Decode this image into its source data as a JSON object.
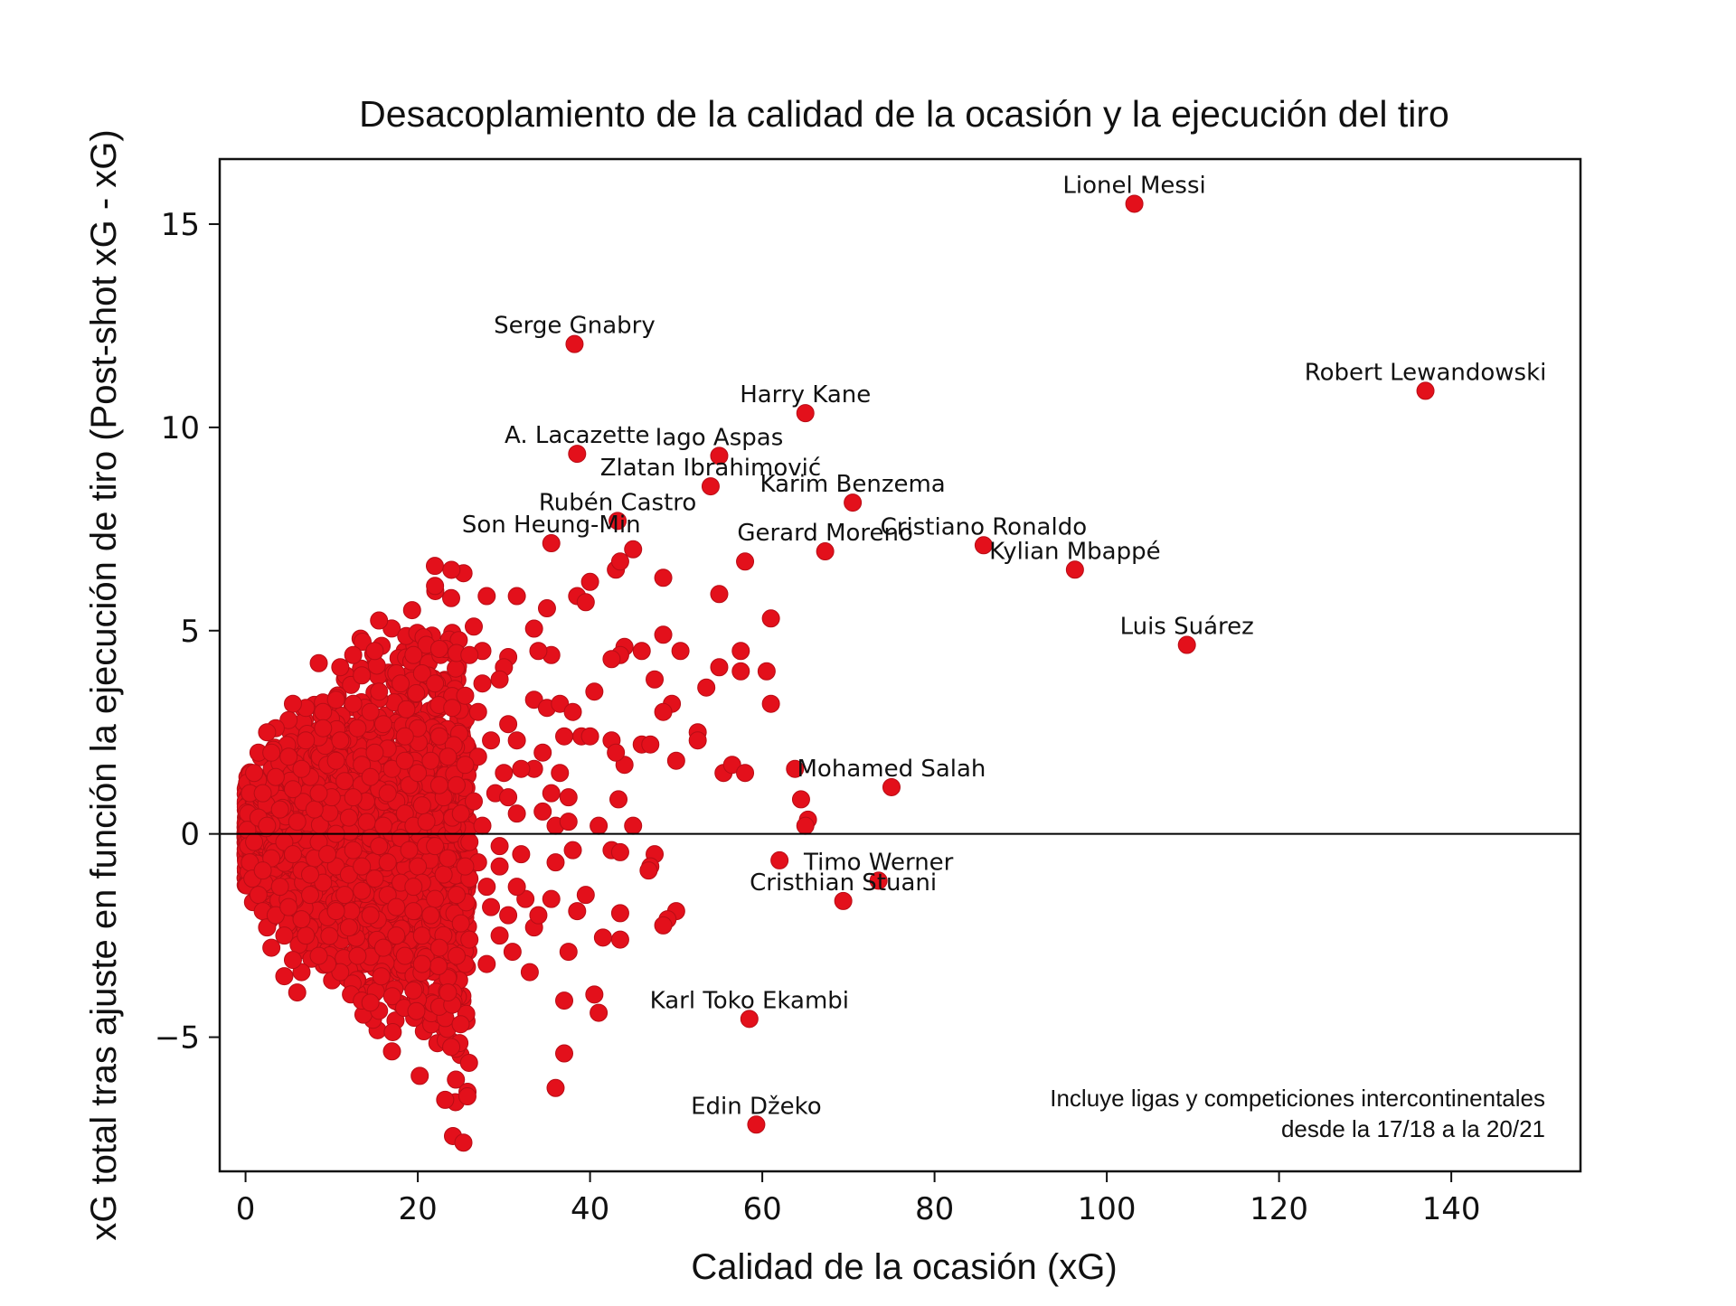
{
  "chart_data": {
    "type": "scatter",
    "title": "Desacoplamiento de la calidad de la ocasión y la ejecución del tiro",
    "xlabel": "Calidad de la ocasión (xG)",
    "ylabel": "xG total tras ajuste en función la ejecución de tiro (Post-shot xG - xG)",
    "xlim": [
      -3,
      155
    ],
    "ylim": [
      -8.3,
      16.6
    ],
    "xticks": [
      0,
      20,
      40,
      60,
      80,
      100,
      120,
      140
    ],
    "yticks": [
      -5,
      0,
      5,
      10,
      15
    ],
    "ytick_labels": [
      "−5",
      "0",
      "5",
      "10",
      "15"
    ],
    "grid": false,
    "reference_line_y": 0,
    "point_color": "#e3101b",
    "point_edge_color": "#b80d16",
    "note": [
      "Incluye ligas y competiciones intercontinentales",
      "desde la 17/18 a la 20/21"
    ],
    "labeled_points": [
      {
        "label": "Lionel Messi",
        "x": 103.2,
        "y": 15.5
      },
      {
        "label": "Serge Gnabry",
        "x": 38.2,
        "y": 12.05
      },
      {
        "label": "Robert Lewandowski",
        "x": 137.0,
        "y": 10.9
      },
      {
        "label": "Harry Kane",
        "x": 65.0,
        "y": 10.35
      },
      {
        "label": "A. Lacazette",
        "x": 38.5,
        "y": 9.35
      },
      {
        "label": "Iago Aspas",
        "x": 55.0,
        "y": 9.3
      },
      {
        "label": "Zlatan Ibrahimović",
        "x": 54.0,
        "y": 8.55
      },
      {
        "label": "Karim Benzema",
        "x": 70.5,
        "y": 8.15
      },
      {
        "label": "Rubén Castro",
        "x": 43.2,
        "y": 7.7
      },
      {
        "label": "Son Heung-Min",
        "x": 35.5,
        "y": 7.15
      },
      {
        "label": "Gerard Moreno",
        "x": 67.3,
        "y": 6.95
      },
      {
        "label": "Cristiano Ronaldo",
        "x": 85.7,
        "y": 7.1
      },
      {
        "label": "Kylian Mbappé",
        "x": 96.3,
        "y": 6.5
      },
      {
        "label": "Luis Suárez",
        "x": 109.3,
        "y": 4.65
      },
      {
        "label": "Mohamed Salah",
        "x": 75.0,
        "y": 1.15
      },
      {
        "label": "Timo Werner",
        "x": 73.5,
        "y": -1.15
      },
      {
        "label": "Cristhian Stuani",
        "x": 69.4,
        "y": -1.65
      },
      {
        "label": "Karl Toko Ekambi",
        "x": 58.5,
        "y": -4.55
      },
      {
        "label": "Edin Džeko",
        "x": 59.3,
        "y": -7.15
      }
    ],
    "other_points": [
      [
        22.0,
        6.1
      ],
      [
        28.0,
        5.85
      ],
      [
        31.5,
        5.85
      ],
      [
        35.0,
        5.55
      ],
      [
        38.5,
        5.85
      ],
      [
        39.5,
        5.7
      ],
      [
        40.0,
        6.2
      ],
      [
        43.0,
        6.5
      ],
      [
        43.5,
        6.7
      ],
      [
        45.0,
        7.0
      ],
      [
        48.5,
        6.3
      ],
      [
        55.0,
        5.9
      ],
      [
        58.0,
        6.7
      ],
      [
        61.0,
        5.3
      ],
      [
        57.5,
        4.5
      ],
      [
        60.5,
        4.0
      ],
      [
        57.5,
        4.0
      ],
      [
        55.0,
        4.1
      ],
      [
        53.5,
        3.6
      ],
      [
        50.5,
        4.5
      ],
      [
        48.5,
        4.9
      ],
      [
        46.0,
        4.5
      ],
      [
        44.0,
        4.6
      ],
      [
        43.5,
        4.4
      ],
      [
        42.5,
        4.3
      ],
      [
        47.5,
        3.8
      ],
      [
        40.5,
        3.5
      ],
      [
        49.5,
        3.2
      ],
      [
        48.5,
        3.0
      ],
      [
        52.5,
        2.5
      ],
      [
        52.5,
        2.3
      ],
      [
        61.0,
        3.2
      ],
      [
        46.0,
        2.2
      ],
      [
        47.0,
        2.2
      ],
      [
        44.0,
        1.7
      ],
      [
        42.5,
        2.3
      ],
      [
        43.0,
        2.0
      ],
      [
        39.0,
        2.4
      ],
      [
        40.0,
        2.4
      ],
      [
        50.0,
        1.8
      ],
      [
        55.5,
        1.5
      ],
      [
        56.5,
        1.7
      ],
      [
        58.0,
        1.5
      ],
      [
        63.8,
        1.6
      ],
      [
        64.5,
        0.85
      ],
      [
        65.3,
        0.35
      ],
      [
        65.0,
        0.2
      ],
      [
        43.3,
        0.85
      ],
      [
        45.0,
        0.2
      ],
      [
        41.0,
        0.2
      ],
      [
        42.5,
        -0.4
      ],
      [
        43.5,
        -0.45
      ],
      [
        47.5,
        -0.5
      ],
      [
        47.0,
        -0.8
      ],
      [
        46.8,
        -0.9
      ],
      [
        62.0,
        -0.65
      ],
      [
        50.0,
        -1.9
      ],
      [
        49.0,
        -2.1
      ],
      [
        48.5,
        -2.25
      ],
      [
        43.5,
        -1.95
      ],
      [
        41.5,
        -2.55
      ],
      [
        43.5,
        -2.6
      ],
      [
        39.5,
        -1.5
      ],
      [
        38.5,
        -1.9
      ],
      [
        37.5,
        -2.9
      ],
      [
        37.0,
        -4.1
      ],
      [
        40.5,
        -3.95
      ],
      [
        41.0,
        -4.4
      ],
      [
        37.0,
        -5.4
      ],
      [
        36.0,
        -6.25
      ],
      [
        17.0,
        -5.35
      ],
      [
        15.5,
        -4.35
      ],
      [
        13.5,
        -4.1
      ],
      [
        14.5,
        -4.15
      ],
      [
        22.5,
        -4.25
      ],
      [
        24.0,
        -4.2
      ],
      [
        23.5,
        -3.9
      ],
      [
        19.5,
        -3.85
      ],
      [
        25.5,
        -3.2
      ],
      [
        28.0,
        -3.2
      ],
      [
        33.0,
        -3.4
      ],
      [
        31.0,
        -2.9
      ],
      [
        29.5,
        -2.5
      ],
      [
        33.5,
        -2.3
      ],
      [
        30.5,
        -2.0
      ],
      [
        32.5,
        -1.6
      ],
      [
        34.0,
        -2.0
      ],
      [
        35.5,
        -1.6
      ],
      [
        31.5,
        -1.3
      ],
      [
        28.5,
        -1.8
      ],
      [
        36.0,
        -0.7
      ],
      [
        38.0,
        -0.4
      ],
      [
        36.0,
        0.2
      ],
      [
        37.5,
        0.3
      ],
      [
        34.5,
        0.55
      ],
      [
        35.5,
        1.0
      ],
      [
        37.5,
        0.9
      ],
      [
        36.5,
        1.5
      ],
      [
        33.5,
        1.6
      ],
      [
        34.5,
        2.0
      ],
      [
        31.5,
        2.3
      ],
      [
        32.0,
        1.6
      ],
      [
        30.0,
        1.5
      ],
      [
        30.5,
        2.7
      ],
      [
        33.5,
        3.3
      ],
      [
        35.0,
        3.1
      ],
      [
        36.5,
        3.2
      ],
      [
        38.0,
        3.0
      ],
      [
        37.0,
        2.4
      ],
      [
        35.5,
        4.4
      ],
      [
        34.0,
        4.5
      ],
      [
        33.5,
        5.05
      ],
      [
        30.5,
        4.35
      ],
      [
        30.0,
        4.1
      ],
      [
        29.5,
        3.8
      ],
      [
        27.5,
        4.5
      ],
      [
        26.5,
        5.1
      ],
      [
        24.5,
        4.45
      ],
      [
        26.0,
        4.4
      ],
      [
        27.5,
        3.7
      ],
      [
        25.5,
        3.4
      ],
      [
        21.0,
        4.65
      ],
      [
        22.5,
        4.55
      ],
      [
        19.5,
        4.4
      ],
      [
        20.5,
        3.95
      ],
      [
        17.5,
        3.95
      ],
      [
        15.5,
        5.25
      ],
      [
        15.0,
        4.5
      ],
      [
        12.5,
        4.4
      ],
      [
        11.0,
        4.1
      ],
      [
        8.5,
        4.2
      ],
      [
        13.5,
        3.9
      ],
      [
        15.5,
        3.5
      ],
      [
        18.0,
        3.7
      ],
      [
        22.0,
        3.7
      ],
      [
        24.0,
        3.1
      ],
      [
        27.0,
        3.0
      ],
      [
        28.5,
        2.3
      ],
      [
        27.0,
        1.9
      ],
      [
        25.5,
        1.7
      ],
      [
        29.0,
        1.0
      ],
      [
        30.5,
        0.9
      ],
      [
        31.5,
        0.5
      ],
      [
        27.5,
        0.2
      ],
      [
        29.5,
        -0.3
      ],
      [
        27.0,
        -0.7
      ],
      [
        26.0,
        -1.1
      ],
      [
        28.0,
        -1.3
      ],
      [
        29.5,
        -0.8
      ],
      [
        32.0,
        -0.5
      ],
      [
        24.5,
        -1.5
      ],
      [
        25.0,
        -2.2
      ],
      [
        26.0,
        -2.6
      ],
      [
        24.5,
        -3.0
      ],
      [
        22.5,
        -2.8
      ],
      [
        20.5,
        -3.2
      ],
      [
        18.5,
        -3.0
      ],
      [
        17.5,
        -2.5
      ],
      [
        16.0,
        -2.8
      ],
      [
        13.0,
        -3.0
      ],
      [
        11.0,
        -3.4
      ],
      [
        9.5,
        -3.2
      ],
      [
        6.5,
        -3.4
      ],
      [
        6.0,
        -3.9
      ],
      [
        5.5,
        -3.1
      ],
      [
        4.5,
        -3.5
      ],
      [
        3.0,
        -2.8
      ],
      [
        7.0,
        -2.5
      ],
      [
        8.5,
        -3.0
      ],
      [
        12.0,
        -2.3
      ],
      [
        10.5,
        -1.9
      ],
      [
        14.5,
        -2.0
      ],
      [
        19.5,
        -1.9
      ],
      [
        22.0,
        -1.6
      ],
      [
        23.0,
        -1.0
      ],
      [
        20.0,
        -0.8
      ],
      [
        17.5,
        -0.5
      ],
      [
        22.0,
        -0.3
      ],
      [
        24.0,
        0.4
      ],
      [
        21.5,
        0.8
      ],
      [
        19.0,
        1.2
      ],
      [
        21.5,
        1.8
      ],
      [
        22.5,
        2.4
      ],
      [
        20.0,
        2.6
      ],
      [
        18.5,
        2.4
      ],
      [
        16.5,
        2.1
      ],
      [
        16.0,
        2.7
      ],
      [
        14.5,
        3.0
      ],
      [
        12.5,
        3.2
      ],
      [
        10.5,
        3.3
      ],
      [
        9.0,
        3.0
      ],
      [
        7.0,
        3.1
      ],
      [
        5.5,
        3.2
      ],
      [
        5.0,
        2.8
      ],
      [
        3.5,
        2.6
      ],
      [
        2.5,
        2.5
      ],
      [
        1.5,
        2.0
      ],
      [
        1.0,
        1.5
      ],
      [
        0.5,
        1.0
      ],
      [
        0.3,
        0.5
      ],
      [
        0.2,
        0.1
      ],
      [
        0.3,
        -0.3
      ],
      [
        0.5,
        -0.7
      ],
      [
        0.8,
        -1.1
      ],
      [
        1.5,
        -1.5
      ],
      [
        2.0,
        -1.9
      ],
      [
        2.5,
        -2.3
      ],
      [
        3.5,
        -2.0
      ],
      [
        4.5,
        -2.5
      ],
      [
        5.0,
        -1.8
      ],
      [
        6.5,
        -2.1
      ],
      [
        7.5,
        -1.5
      ],
      [
        9.0,
        -1.2
      ],
      [
        8.0,
        -0.6
      ],
      [
        10.5,
        -0.8
      ],
      [
        12.0,
        -1.0
      ],
      [
        13.5,
        -1.4
      ],
      [
        15.0,
        -1.1
      ],
      [
        16.5,
        -1.5
      ],
      [
        18.0,
        -1.2
      ],
      [
        1.0,
        -0.2
      ],
      [
        1.5,
        0.4
      ],
      [
        2.0,
        1.0
      ],
      [
        2.5,
        0.2
      ],
      [
        3.0,
        -0.6
      ],
      [
        3.5,
        1.4
      ],
      [
        4.0,
        0.6
      ],
      [
        4.5,
        -0.2
      ],
      [
        5.0,
        1.9
      ],
      [
        5.5,
        1.1
      ],
      [
        6.0,
        0.3
      ],
      [
        6.5,
        -0.9
      ],
      [
        7.0,
        2.3
      ],
      [
        7.5,
        1.4
      ],
      [
        8.0,
        0.6
      ],
      [
        8.5,
        -0.2
      ],
      [
        9.0,
        2.6
      ],
      [
        9.5,
        1.7
      ],
      [
        10.0,
        0.9
      ],
      [
        10.5,
        0.0
      ],
      [
        11.0,
        2.3
      ],
      [
        11.5,
        1.3
      ],
      [
        12.0,
        0.4
      ],
      [
        12.5,
        -0.4
      ],
      [
        13.0,
        2.6
      ],
      [
        13.5,
        1.7
      ],
      [
        14.0,
        0.8
      ],
      [
        14.5,
        -0.1
      ],
      [
        15.0,
        2.0
      ],
      [
        15.5,
        1.1
      ],
      [
        16.0,
        0.2
      ],
      [
        16.5,
        -0.7
      ],
      [
        17.0,
        1.6
      ],
      [
        17.5,
        0.8
      ],
      [
        18.0,
        -0.1
      ],
      [
        18.5,
        0.5
      ],
      [
        19.0,
        -0.4
      ],
      [
        19.5,
        0.2
      ],
      [
        20.0,
        1.5
      ],
      [
        20.5,
        -1.2
      ],
      [
        21.0,
        0.3
      ],
      [
        23.0,
        0.9
      ],
      [
        23.5,
        -0.6
      ],
      [
        25.0,
        0.5
      ],
      [
        26.0,
        -0.2
      ],
      [
        26.5,
        0.8
      ],
      [
        24.5,
        1.2
      ],
      [
        2.0,
        -0.9
      ],
      [
        3.0,
        2.0
      ],
      [
        4.0,
        -1.3
      ],
      [
        5.5,
        -0.5
      ],
      [
        6.5,
        1.6
      ],
      [
        7.5,
        -1.0
      ],
      [
        8.5,
        1.0
      ],
      [
        9.5,
        -0.5
      ],
      [
        10.5,
        1.8
      ],
      [
        11.5,
        -1.5
      ],
      [
        12.5,
        0.9
      ],
      [
        13.5,
        -0.8
      ],
      [
        14.5,
        1.4
      ],
      [
        15.5,
        -0.3
      ],
      [
        16.5,
        1.0
      ],
      [
        17.5,
        -1.8
      ],
      [
        18.5,
        1.8
      ],
      [
        19.5,
        -1.3
      ],
      [
        20.5,
        0.7
      ],
      [
        21.5,
        -2.0
      ],
      [
        22.5,
        1.2
      ],
      [
        23.5,
        1.9
      ],
      [
        25.5,
        -0.8
      ]
    ]
  }
}
